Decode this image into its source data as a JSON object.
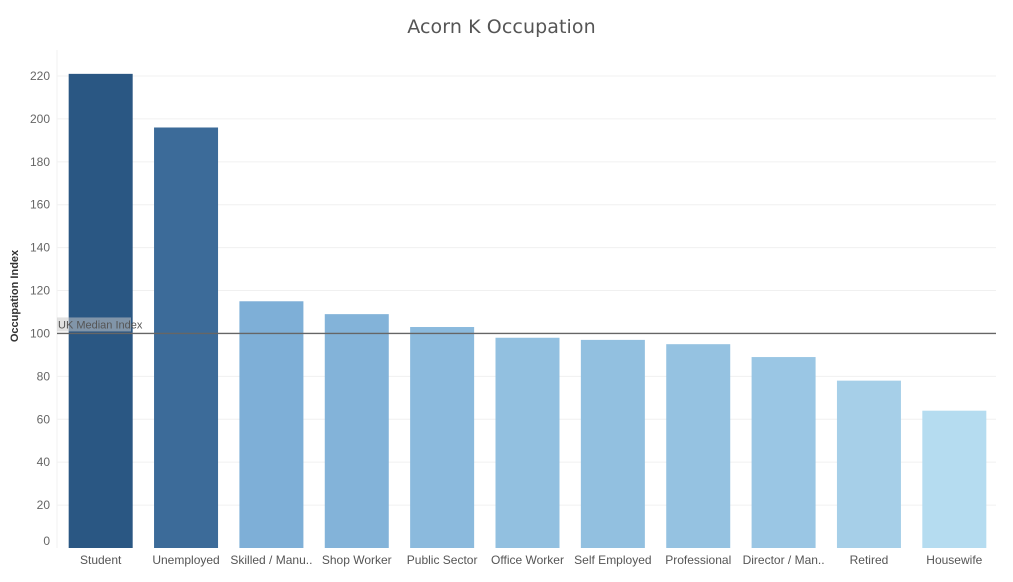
{
  "chart_data": {
    "type": "bar",
    "title": "Acorn K Occupation",
    "xlabel": "",
    "ylabel": "Occupation Index",
    "categories": [
      "Student",
      "Unemployed",
      "Skilled / Manu..",
      "Shop Worker",
      "Public Sector",
      "Office Worker",
      "Self Employed",
      "Professional",
      "Director / Man..",
      "Retired",
      "Housewife"
    ],
    "values": [
      221,
      196,
      115,
      109,
      103,
      98,
      97,
      95,
      89,
      78,
      64
    ],
    "colors": [
      "#2a5783",
      "#3c6b99",
      "#7eafd7",
      "#83b3d9",
      "#8bbadd",
      "#92c0e0",
      "#92c0e0",
      "#95c2e1",
      "#9ac6e4",
      "#a6cfe8",
      "#b5dcf0"
    ],
    "ylim": [
      0,
      220
    ],
    "yticks": [
      0,
      20,
      40,
      60,
      80,
      100,
      120,
      140,
      160,
      180,
      200,
      220
    ],
    "grid": true,
    "reference_line": {
      "value": 100,
      "label": "UK Median Index",
      "color": "#666666"
    }
  }
}
